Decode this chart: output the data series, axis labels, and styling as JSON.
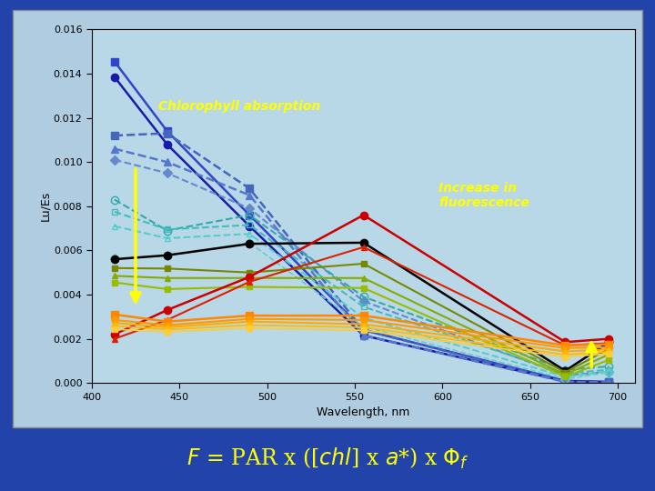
{
  "bg_outer": "#2244aa",
  "bg_inner_rect": "#aaccdd",
  "bg_plot": "#b8d8e8",
  "xlabel": "Wavelength, nm",
  "ylabel": "Lu/Es",
  "xlim": [
    400,
    710
  ],
  "ylim": [
    0,
    0.016
  ],
  "yticks": [
    0,
    0.002,
    0.004,
    0.006,
    0.008,
    0.01,
    0.012,
    0.014,
    0.016
  ],
  "xticks": [
    400,
    450,
    500,
    550,
    600,
    650,
    700
  ],
  "annotation_chl": "Chlorophyll absorption",
  "annotation_fluor": "Increase in\nfluorescence",
  "series": [
    {
      "x": [
        413,
        443,
        490,
        555,
        670,
        695
      ],
      "y": [
        0.01455,
        0.0114,
        0.0076,
        0.0024,
        0.0001,
        5e-05
      ],
      "color": "#3344cc",
      "marker": "s",
      "linestyle": "-",
      "markersize": 6,
      "linewidth": 1.8
    },
    {
      "x": [
        413,
        443,
        490,
        555,
        670,
        695
      ],
      "y": [
        0.01385,
        0.0108,
        0.0071,
        0.00215,
        8e-05,
        4e-05
      ],
      "color": "#1a1aaa",
      "marker": "o",
      "linestyle": "-",
      "markersize": 6,
      "linewidth": 1.8
    },
    {
      "x": [
        413,
        443,
        490,
        555,
        670,
        695
      ],
      "y": [
        0.0112,
        0.0113,
        0.0088,
        0.0024,
        6e-05,
        3e-05
      ],
      "color": "#4466bb",
      "marker": "s",
      "linestyle": "--",
      "markersize": 6,
      "linewidth": 1.8
    },
    {
      "x": [
        413,
        443,
        490,
        555,
        670,
        695
      ],
      "y": [
        0.0106,
        0.01,
        0.0085,
        0.00215,
        5e-05,
        2e-05
      ],
      "color": "#5577cc",
      "marker": "^",
      "linestyle": "--",
      "markersize": 6,
      "linewidth": 1.8
    },
    {
      "x": [
        413,
        443,
        490,
        555,
        670,
        695
      ],
      "y": [
        0.0101,
        0.0095,
        0.0079,
        0.0037,
        0.00035,
        0.0005
      ],
      "color": "#6688cc",
      "marker": "D",
      "linestyle": "--",
      "markersize": 5,
      "linewidth": 1.5
    },
    {
      "x": [
        413,
        443,
        490,
        555,
        670,
        695
      ],
      "y": [
        0.0083,
        0.0069,
        0.0076,
        0.0039,
        0.0006,
        0.00075
      ],
      "color": "#33aaaa",
      "marker": "o",
      "linestyle": "--",
      "markersize": 6,
      "linewidth": 1.5,
      "fillstyle": "none"
    },
    {
      "x": [
        413,
        443,
        490,
        555,
        670,
        695
      ],
      "y": [
        0.00775,
        0.00695,
        0.00715,
        0.00345,
        0.00043,
        0.0006
      ],
      "color": "#44bbbb",
      "marker": "s",
      "linestyle": "--",
      "markersize": 5,
      "linewidth": 1.5,
      "fillstyle": "none"
    },
    {
      "x": [
        413,
        443,
        490,
        555,
        670,
        695
      ],
      "y": [
        0.0071,
        0.00655,
        0.00675,
        0.00295,
        0.00028,
        0.00052
      ],
      "color": "#55cccc",
      "marker": "^",
      "linestyle": "--",
      "markersize": 5,
      "linewidth": 1.5,
      "fillstyle": "none"
    },
    {
      "x": [
        413,
        443,
        490,
        555,
        670,
        695
      ],
      "y": [
        0.00565,
        0.00575,
        0.00635,
        0.00255,
        0.00018,
        0.00048
      ],
      "color": "#66cccc",
      "marker": "D",
      "linestyle": "--",
      "markersize": 5,
      "linewidth": 1.2,
      "fillstyle": "none"
    },
    {
      "x": [
        413,
        443,
        490,
        555,
        670,
        695
      ],
      "y": [
        0.0056,
        0.00578,
        0.0063,
        0.00635,
        0.00055,
        0.00185
      ],
      "color": "#000000",
      "marker": "o",
      "linestyle": "-",
      "markersize": 6,
      "linewidth": 1.8
    },
    {
      "x": [
        413,
        443,
        490,
        555,
        670,
        695
      ],
      "y": [
        0.0052,
        0.00518,
        0.005,
        0.0054,
        0.00048,
        0.00155
      ],
      "color": "#778800",
      "marker": "s",
      "linestyle": "-",
      "markersize": 5,
      "linewidth": 1.5
    },
    {
      "x": [
        413,
        443,
        490,
        555,
        670,
        695
      ],
      "y": [
        0.00485,
        0.00475,
        0.00475,
        0.00475,
        0.00038,
        0.0013
      ],
      "color": "#88aa00",
      "marker": "^",
      "linestyle": "-",
      "markersize": 5,
      "linewidth": 1.5
    },
    {
      "x": [
        413,
        443,
        490,
        555,
        670,
        695
      ],
      "y": [
        0.00455,
        0.00425,
        0.00435,
        0.0043,
        0.00028,
        0.00105
      ],
      "color": "#99bb00",
      "marker": "s",
      "linestyle": "-",
      "markersize": 5,
      "linewidth": 1.5
    },
    {
      "x": [
        413,
        443,
        490,
        555,
        670,
        695
      ],
      "y": [
        0.0022,
        0.0033,
        0.0048,
        0.0076,
        0.00185,
        0.002
      ],
      "color": "#cc0000",
      "marker": "o",
      "linestyle": "-",
      "markersize": 6,
      "linewidth": 1.8
    },
    {
      "x": [
        413,
        443,
        490,
        555,
        670,
        695
      ],
      "y": [
        0.002,
        0.00285,
        0.00458,
        0.00615,
        0.0017,
        0.0018
      ],
      "color": "#dd2200",
      "marker": "^",
      "linestyle": "-",
      "markersize": 5,
      "linewidth": 1.5
    },
    {
      "x": [
        413,
        443,
        490,
        555,
        670,
        695
      ],
      "y": [
        0.0031,
        0.00278,
        0.00305,
        0.00305,
        0.0017,
        0.00175
      ],
      "color": "#ff8800",
      "marker": "s",
      "linestyle": "-",
      "markersize": 6,
      "linewidth": 1.8
    },
    {
      "x": [
        413,
        443,
        490,
        555,
        670,
        695
      ],
      "y": [
        0.00285,
        0.00262,
        0.0029,
        0.00285,
        0.00158,
        0.00162
      ],
      "color": "#ff9900",
      "marker": "o",
      "linestyle": "-",
      "markersize": 5,
      "linewidth": 1.5
    },
    {
      "x": [
        413,
        443,
        490,
        555,
        670,
        695
      ],
      "y": [
        0.00272,
        0.00252,
        0.00278,
        0.00266,
        0.00143,
        0.00152
      ],
      "color": "#ffaa00",
      "marker": "^",
      "linestyle": "-",
      "markersize": 5,
      "linewidth": 1.5
    },
    {
      "x": [
        413,
        443,
        490,
        555,
        670,
        695
      ],
      "y": [
        0.00258,
        0.00242,
        0.00262,
        0.00252,
        0.00128,
        0.00142
      ],
      "color": "#ffbb00",
      "marker": "D",
      "linestyle": "-",
      "markersize": 4,
      "linewidth": 1.3
    },
    {
      "x": [
        413,
        443,
        490,
        555,
        670,
        695
      ],
      "y": [
        0.00243,
        0.00232,
        0.00248,
        0.00238,
        0.00118,
        0.00132
      ],
      "color": "#ffcc33",
      "marker": "s",
      "linestyle": "-",
      "markersize": 4,
      "linewidth": 1.2
    }
  ]
}
